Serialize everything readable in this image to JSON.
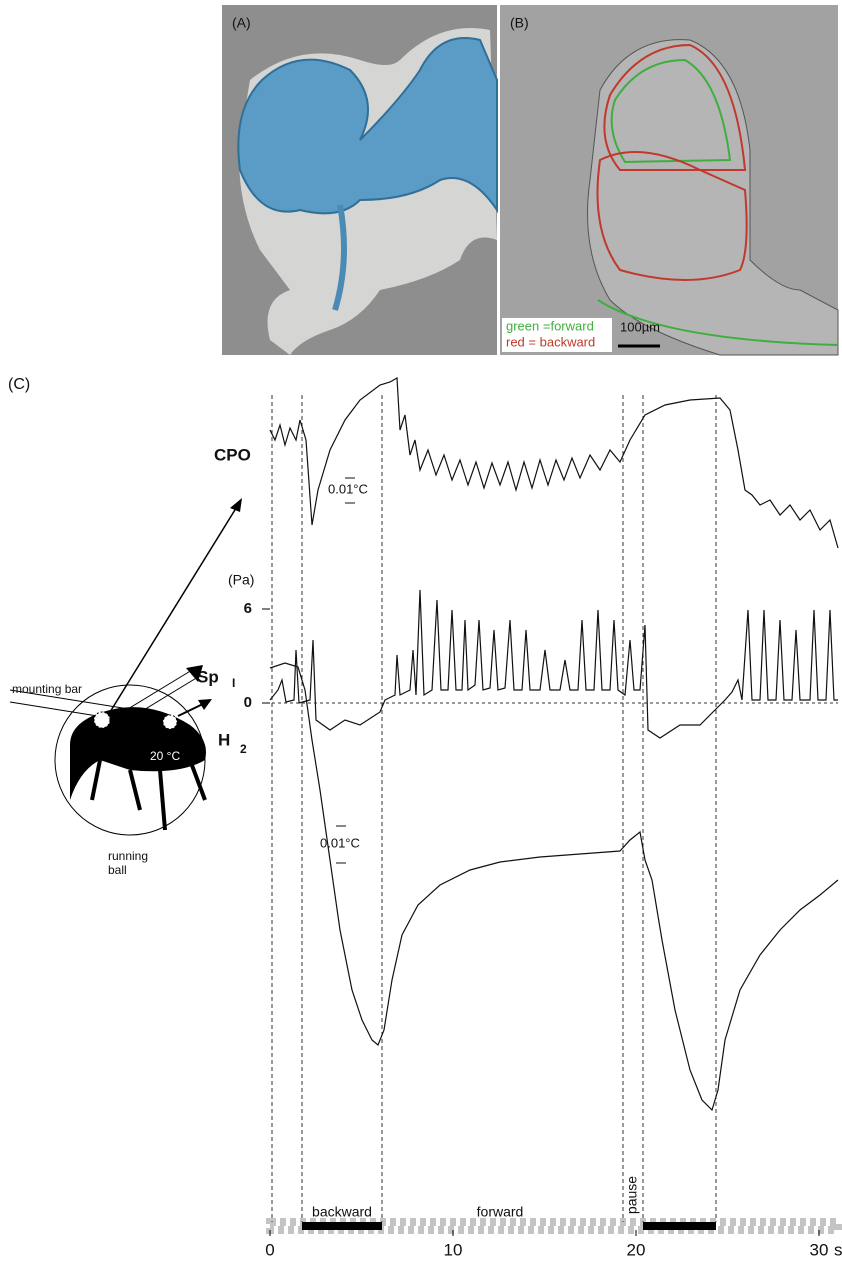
{
  "panels": {
    "a": {
      "label": "(A)"
    },
    "b": {
      "label": "(B)",
      "legend": [
        "green =forward",
        "red = backward"
      ],
      "scale_bar": "100µm"
    },
    "c": {
      "label": "(C)"
    }
  },
  "traces": [
    {
      "name": "CPO",
      "scale": "0.01°C"
    },
    {
      "name": "Sp",
      "subscript": "I",
      "unit": "(Pa)",
      "yticks": [
        0,
        6
      ]
    },
    {
      "name": "H",
      "subscript": "2",
      "scale": "0.01°C"
    }
  ],
  "diagram": {
    "mounting_bar": "mounting bar",
    "temp": "20 °C",
    "ball": [
      "running",
      "ball"
    ]
  },
  "phases": [
    "backward",
    "forward",
    "pause"
  ],
  "x_axis": {
    "ticks": [
      0,
      10,
      20,
      30
    ],
    "unit": "s"
  }
}
